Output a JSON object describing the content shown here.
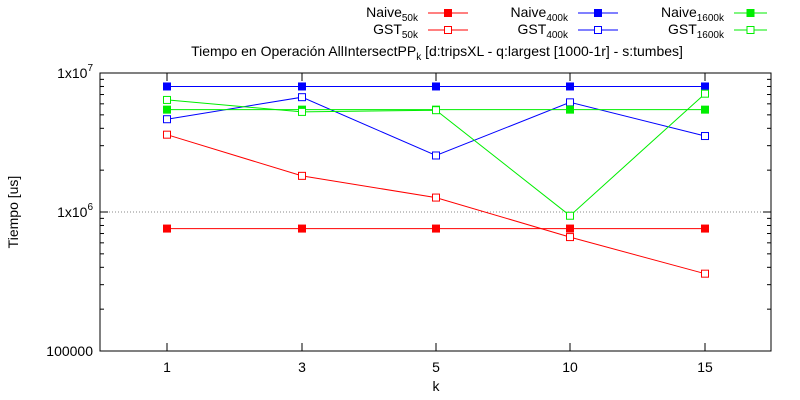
{
  "chart_data": {
    "type": "line",
    "title": "Tiempo en Operación AllIntersectPP",
    "title_subscript": "k",
    "title_suffix": " [d:tripsXL - q:largest [1000-1r] - s:tumbes]",
    "xlabel": "k",
    "ylabel": "Tiempo [us]",
    "x": [
      1,
      3,
      5,
      10,
      15
    ],
    "x_ticks": [
      "1",
      "3",
      "5",
      "10",
      "15"
    ],
    "y_scale": "log",
    "ylim": [
      100000,
      10000000
    ],
    "y_ticks": [
      {
        "value": 100000,
        "label": "100000",
        "base": "100000",
        "exp": ""
      },
      {
        "value": 1000000,
        "label": "1x10^6",
        "base": "1x10",
        "exp": "6"
      },
      {
        "value": 10000000,
        "label": "1x10^7",
        "base": "1x10",
        "exp": "7"
      }
    ],
    "grid": "dotted line at 1x10^6",
    "legend_position": "top-right",
    "series": [
      {
        "name": "Naive",
        "sub": "50k",
        "color": "#ff0000",
        "marker": "filled-square",
        "values": [
          760000,
          760000,
          760000,
          760000,
          760000
        ]
      },
      {
        "name": "GST",
        "sub": "50k",
        "color": "#ff0000",
        "marker": "open-square",
        "values": [
          3600000,
          1820000,
          1270000,
          660000,
          360000
        ]
      },
      {
        "name": "Naive",
        "sub": "400k",
        "color": "#0000ff",
        "marker": "filled-square",
        "values": [
          8000000,
          8000000,
          8000000,
          8000000,
          8000000
        ]
      },
      {
        "name": "GST",
        "sub": "400k",
        "color": "#0000ff",
        "marker": "open-square",
        "values": [
          4650000,
          6700000,
          2550000,
          6150000,
          3520000
        ]
      },
      {
        "name": "Naive",
        "sub": "1600k",
        "color": "#00ee00",
        "marker": "filled-square",
        "values": [
          5450000,
          5450000,
          5450000,
          5450000,
          5450000
        ]
      },
      {
        "name": "GST",
        "sub": "1600k",
        "color": "#00ee00",
        "marker": "open-square",
        "values": [
          6400000,
          5250000,
          5400000,
          940000,
          7100000
        ]
      }
    ]
  }
}
